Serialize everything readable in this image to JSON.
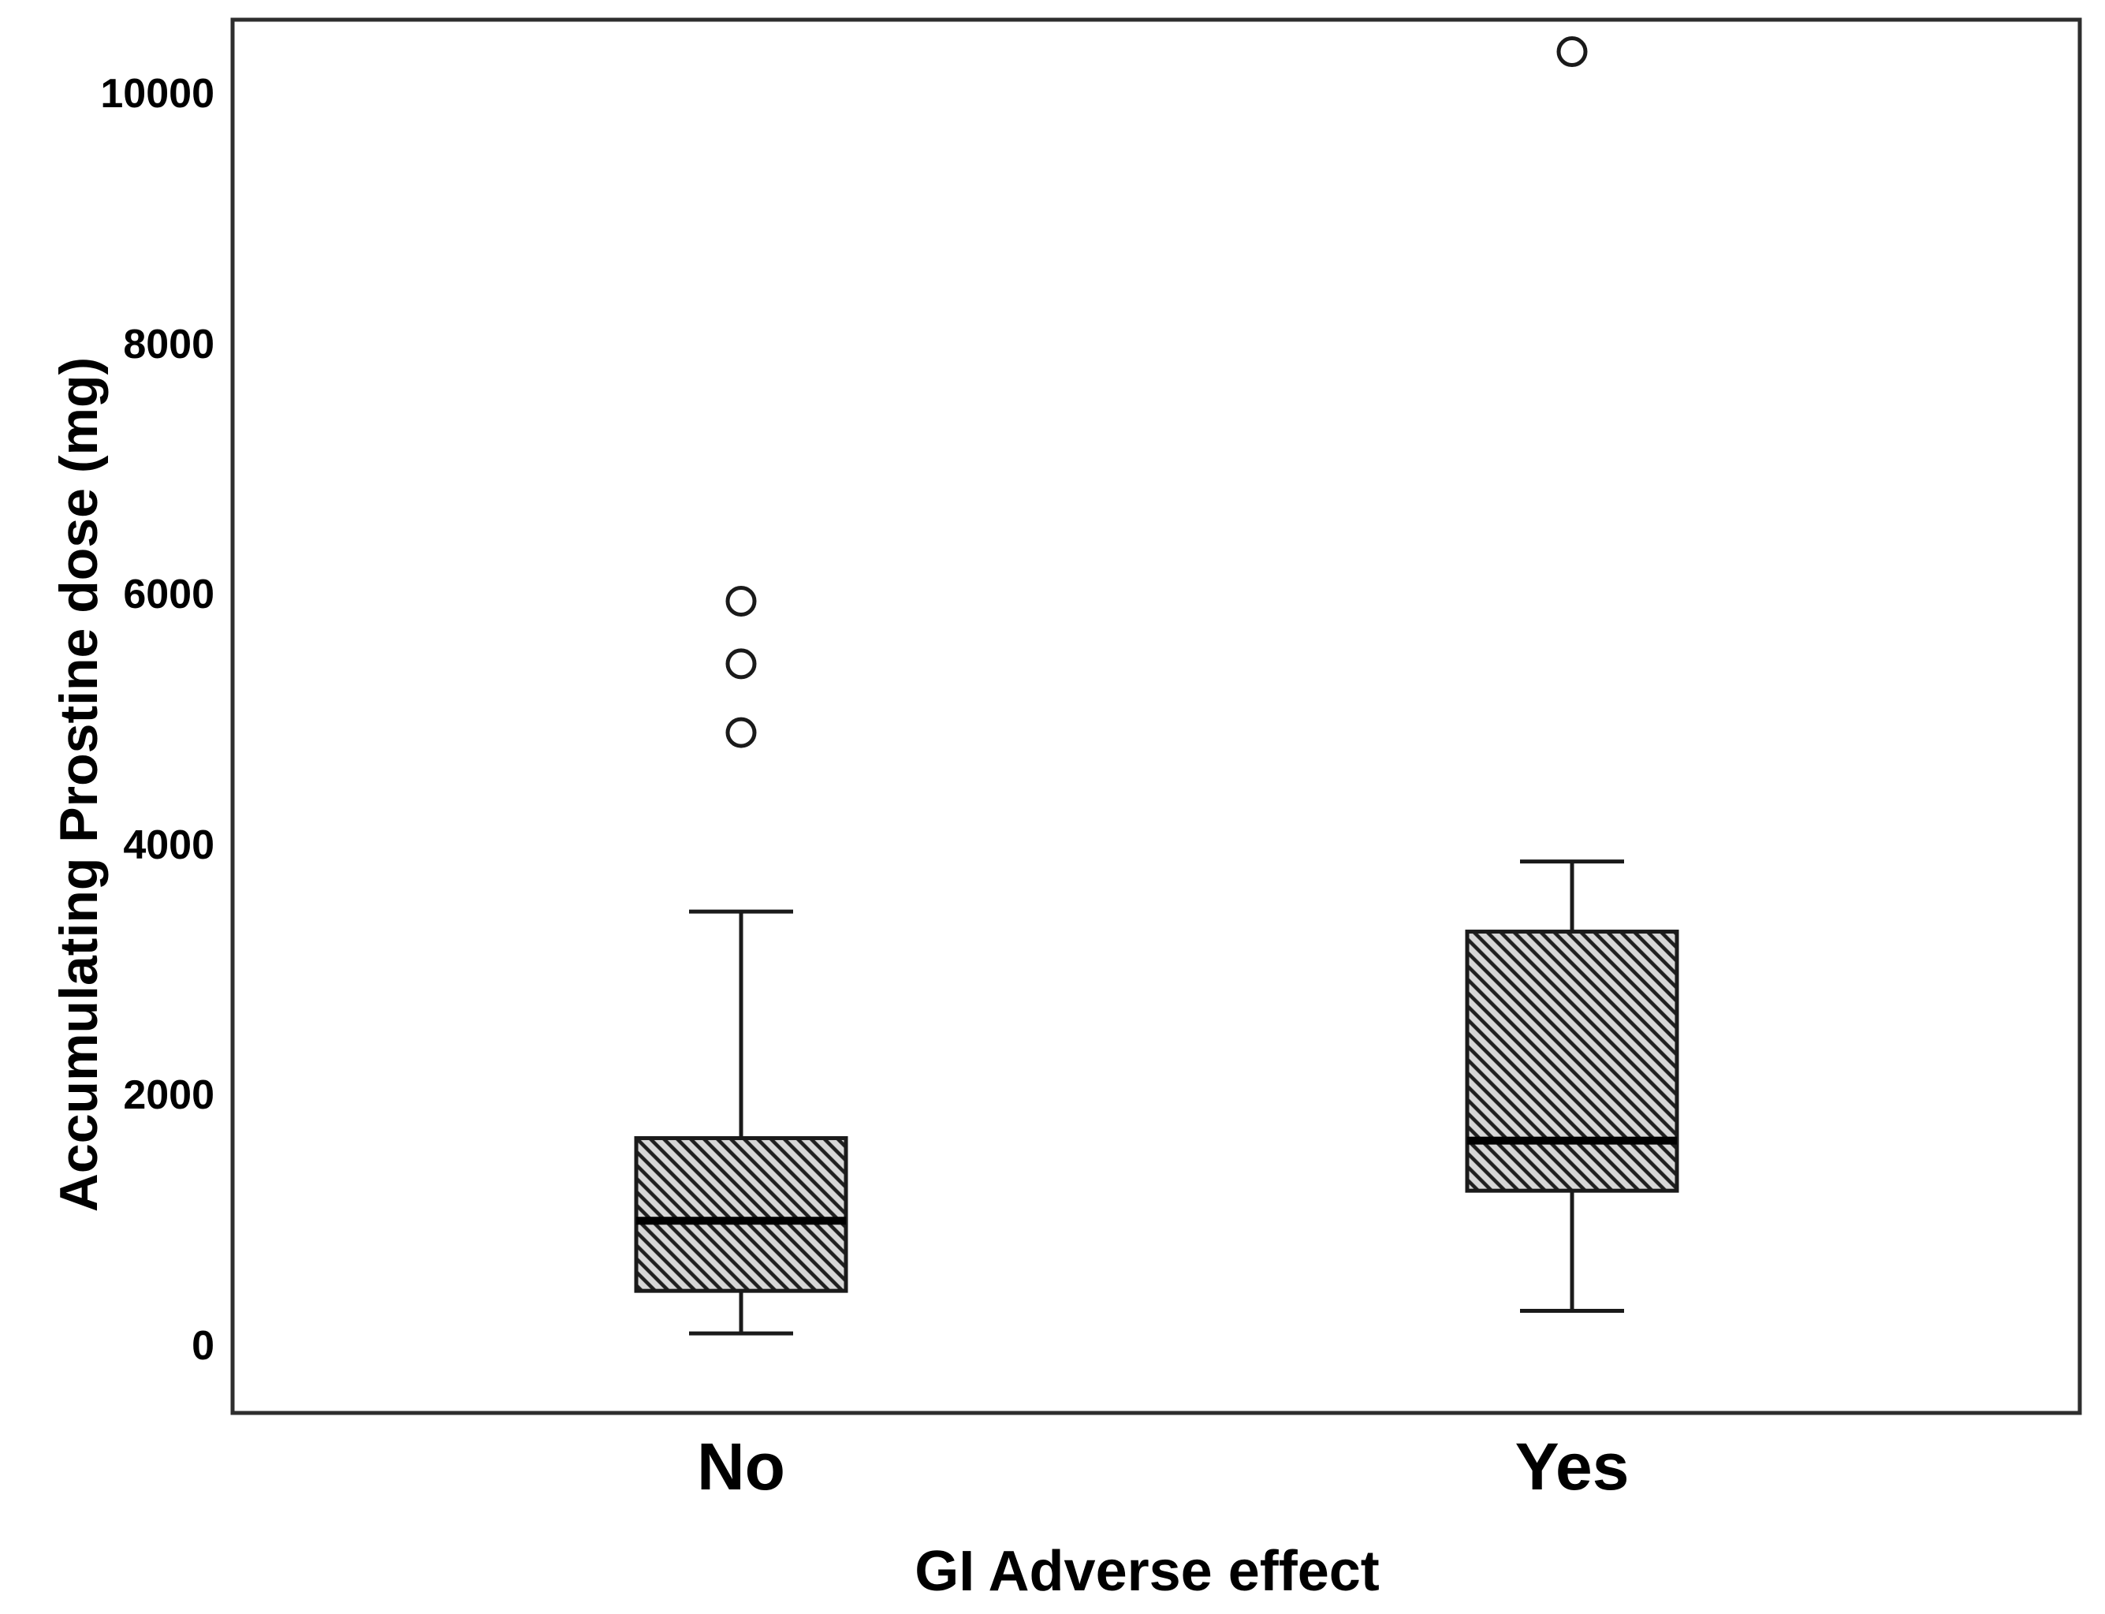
{
  "colors": {
    "ink": "#1a1a1a",
    "frame": "#2e2e2e",
    "median": "#000000",
    "hatch_fill": "#d7d7d7",
    "hatch_line": "#1f1f1f",
    "outlier_fill": "#ffffff"
  },
  "chart_data": {
    "type": "box",
    "title": "",
    "xlabel": "GI Adverse effect",
    "ylabel": "Accumulating Prostine dose (mg)",
    "categories": [
      "No",
      "Yes"
    ],
    "y_ticks": [
      0,
      2000,
      4000,
      6000,
      8000,
      10000
    ],
    "y_tick_labels": [
      "0",
      "2000",
      "4000",
      "6000",
      "8000",
      "10000"
    ],
    "ylim": [
      -530,
      10640
    ],
    "grid": false,
    "legend": "none",
    "box_style": "diagonal-hatch",
    "series": [
      {
        "category": "No",
        "whisker_low": 100,
        "q1": 440,
        "median": 1000,
        "q3": 1660,
        "whisker_high": 3470,
        "outliers": [
          4900,
          5450,
          5950
        ]
      },
      {
        "category": "Yes",
        "whisker_low": 280,
        "q1": 1240,
        "median": 1640,
        "q3": 3310,
        "whisker_high": 3870,
        "outliers": [
          10340
        ]
      }
    ]
  }
}
